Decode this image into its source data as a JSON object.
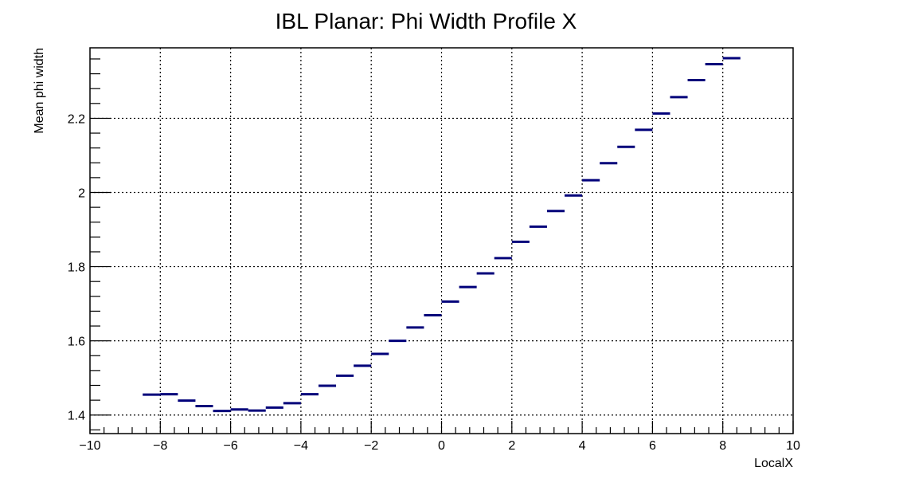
{
  "chart_data": {
    "type": "scatter",
    "style": "profile-histogram",
    "title": "IBL Planar: Phi Width Profile X",
    "xlabel": "LocalX",
    "ylabel": "Mean phi width",
    "xlim": [
      -10,
      10
    ],
    "ylim": [
      1.35,
      2.39
    ],
    "x_ticks": [
      -10,
      -8,
      -6,
      -4,
      -2,
      0,
      2,
      4,
      6,
      8,
      10
    ],
    "x_tick_labels": [
      "−10",
      "−8",
      "−6",
      "−4",
      "−2",
      "0",
      "2",
      "4",
      "6",
      "8",
      "10"
    ],
    "y_ticks": [
      1.4,
      1.6,
      1.8,
      2.0,
      2.2
    ],
    "y_tick_labels": [
      "1.4",
      "1.6",
      "1.8",
      "2",
      "2.2"
    ],
    "grid": true,
    "bin_width": 0.5,
    "bin_color": "#00007a",
    "series": [
      {
        "x": [
          -8.25,
          -7.75,
          -7.25,
          -6.75,
          -6.25,
          -5.75,
          -5.25,
          -4.75,
          -4.25,
          -3.75,
          -3.25,
          -2.75,
          -2.25,
          -1.75,
          -1.25,
          -0.75,
          -0.25,
          0.25,
          0.75,
          1.25,
          1.75,
          2.25,
          2.75,
          3.25,
          3.75,
          4.25,
          4.75,
          5.25,
          5.75,
          6.25,
          6.75,
          7.25,
          7.75,
          8.25
        ],
        "values": [
          1.455,
          1.456,
          1.439,
          1.424,
          1.411,
          1.415,
          1.412,
          1.42,
          1.432,
          1.456,
          1.479,
          1.506,
          1.533,
          1.565,
          1.6,
          1.636,
          1.669,
          1.706,
          1.745,
          1.782,
          1.823,
          1.867,
          1.908,
          1.95,
          1.992,
          2.033,
          2.079,
          2.123,
          2.169,
          2.213,
          2.257,
          2.303,
          2.346,
          2.362
        ]
      }
    ]
  }
}
